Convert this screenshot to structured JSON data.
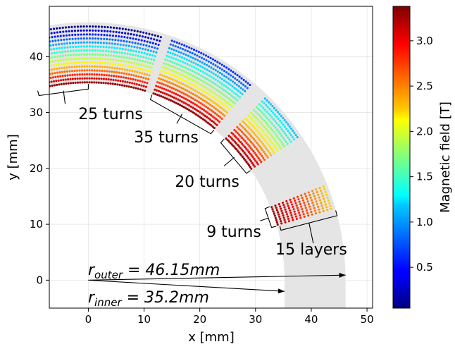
{
  "chart_data": {
    "type": "scatter",
    "xlabel": "x [mm]",
    "ylabel": "y [mm]",
    "xlim": [
      -7,
      51
    ],
    "ylim": [
      -5,
      49
    ],
    "xticks": [
      "0",
      "10",
      "20",
      "30",
      "40",
      "50"
    ],
    "yticks": [
      "0",
      "10",
      "20",
      "30",
      "40"
    ],
    "grid": true,
    "colorbar": {
      "label": "Magnetic field [T]",
      "colormap": "jet",
      "range": [
        0.05,
        3.38
      ],
      "ticks": [
        "0.5",
        "1.0",
        "1.5",
        "2.0",
        "2.5",
        "3.0"
      ]
    },
    "geometry": {
      "r_inner_mm": 35.2,
      "r_outer_mm": 46.15,
      "layers": 15
    },
    "blocks": [
      {
        "label": "25 turns",
        "turns": 25,
        "angle_start_deg": 73,
        "angle_end_deg": 90,
        "field_outer_T": 0.1,
        "field_inner_T": 3.3
      },
      {
        "label": "25 turns",
        "turns": 25,
        "angle_start_deg": 90,
        "angle_end_deg": 107,
        "field_outer_T": 0.1,
        "field_inner_T": 3.3
      },
      {
        "label": "35 turns",
        "turns": 35,
        "angle_start_deg": 50,
        "angle_end_deg": 71,
        "field_outer_T": 0.6,
        "field_inner_T": 3.3
      },
      {
        "label": "20 turns",
        "turns": 20,
        "angle_start_deg": 34,
        "angle_end_deg": 46,
        "field_outer_T": 1.1,
        "field_inner_T": 3.3
      },
      {
        "label": "9 turns",
        "turns": 9,
        "angle_start_deg": 16,
        "angle_end_deg": 22,
        "field_outer_T": 2.3,
        "field_inner_T": 3.3
      }
    ],
    "annotations": [
      "25 turns",
      "35 turns",
      "20 turns",
      "9 turns",
      "15 layers"
    ],
    "equations": {
      "outer_base": "r",
      "outer_sub": "outer",
      "outer_rest": " = 46.15mm",
      "inner_base": "r",
      "inner_sub": "inner",
      "inner_rest": " = 35.2mm"
    }
  }
}
